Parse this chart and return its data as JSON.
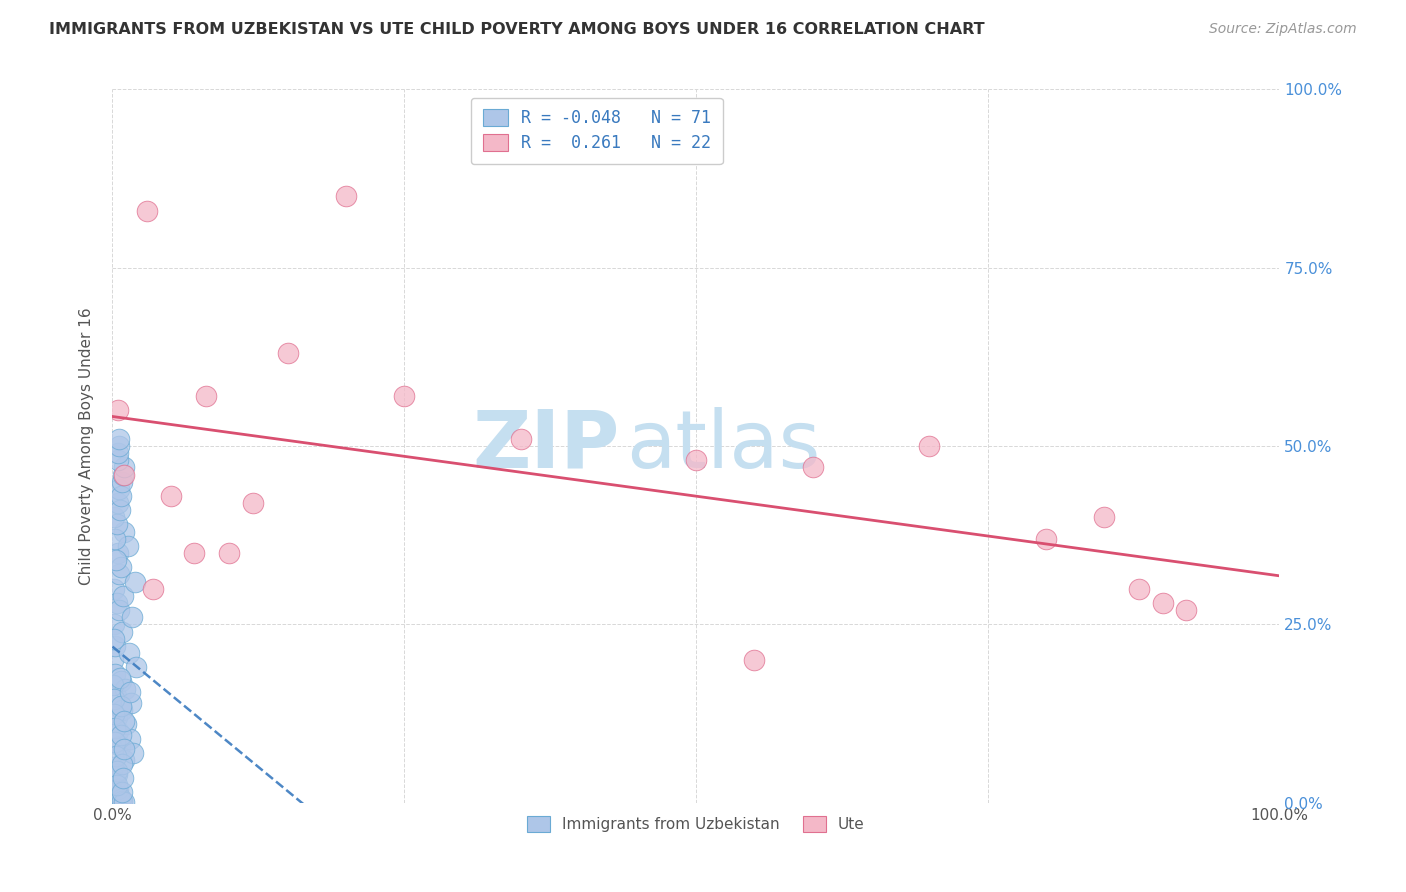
{
  "title": "IMMIGRANTS FROM UZBEKISTAN VS UTE CHILD POVERTY AMONG BOYS UNDER 16 CORRELATION CHART",
  "source": "Source: ZipAtlas.com",
  "ylabel": "Child Poverty Among Boys Under 16",
  "blue_R": -0.048,
  "blue_N": 71,
  "pink_R": 0.261,
  "pink_N": 22,
  "blue_color": "#aec6e8",
  "pink_color": "#f4b8c8",
  "blue_edge": "#6aaad4",
  "pink_edge": "#e07090",
  "trend_blue_color": "#3a7abf",
  "trend_pink_color": "#d94f70",
  "blue_x": [
    0.05,
    0.1,
    0.15,
    0.2,
    0.25,
    0.3,
    0.35,
    0.4,
    0.45,
    0.5,
    0.55,
    0.6,
    0.65,
    0.7,
    0.75,
    0.8,
    0.85,
    0.9,
    0.95,
    1.0,
    1.1,
    1.2,
    1.3,
    1.4,
    1.5,
    1.6,
    1.7,
    1.8,
    1.9,
    2.0,
    0.05,
    0.1,
    0.15,
    0.2,
    0.25,
    0.3,
    0.35,
    0.4,
    0.45,
    0.5,
    0.55,
    0.6,
    0.65,
    0.7,
    0.75,
    0.8,
    0.85,
    0.9,
    0.95,
    1.0,
    0.05,
    0.1,
    0.15,
    0.2,
    0.25,
    0.3,
    0.35,
    0.4,
    0.45,
    0.5,
    0.55,
    0.6,
    0.65,
    0.7,
    0.75,
    0.8,
    0.85,
    0.9,
    0.95,
    1.0,
    1.5
  ],
  "blue_y": [
    20.0,
    25.0,
    30.0,
    18.0,
    22.0,
    15.0,
    28.0,
    12.0,
    35.0,
    10.0,
    32.0,
    27.0,
    8.0,
    33.0,
    17.0,
    24.0,
    13.0,
    29.0,
    6.0,
    38.0,
    16.0,
    11.0,
    36.0,
    21.0,
    9.0,
    14.0,
    26.0,
    7.0,
    31.0,
    19.0,
    5.0,
    40.0,
    23.0,
    37.0,
    3.0,
    34.0,
    4.0,
    39.0,
    2.0,
    42.0,
    44.0,
    1.0,
    41.0,
    43.0,
    0.5,
    45.0,
    0.3,
    46.0,
    0.1,
    47.0,
    16.5,
    14.5,
    12.5,
    10.5,
    8.5,
    6.5,
    4.5,
    2.5,
    48.0,
    49.0,
    50.0,
    51.0,
    17.5,
    13.5,
    9.5,
    5.5,
    1.5,
    3.5,
    7.5,
    11.5,
    15.5
  ],
  "pink_x": [
    0.5,
    1.0,
    3.0,
    5.0,
    8.0,
    10.0,
    12.0,
    15.0,
    20.0,
    25.0,
    35.0,
    50.0,
    60.0,
    70.0,
    80.0,
    85.0,
    90.0,
    92.0,
    3.5,
    7.0,
    55.0,
    88.0
  ],
  "pink_y": [
    55.0,
    46.0,
    83.0,
    43.0,
    57.0,
    35.0,
    42.0,
    63.0,
    85.0,
    57.0,
    51.0,
    48.0,
    47.0,
    50.0,
    37.0,
    40.0,
    28.0,
    27.0,
    30.0,
    35.0,
    20.0,
    30.0
  ],
  "watermark_zip": "ZIP",
  "watermark_atlas": "atlas",
  "watermark_color_zip": "#c5dff0",
  "watermark_color_atlas": "#c5dff0",
  "legend_label_blue": "Immigrants from Uzbekistan",
  "legend_label_pink": "Ute",
  "bg_color": "#ffffff",
  "grid_color": "#d8d8d8"
}
